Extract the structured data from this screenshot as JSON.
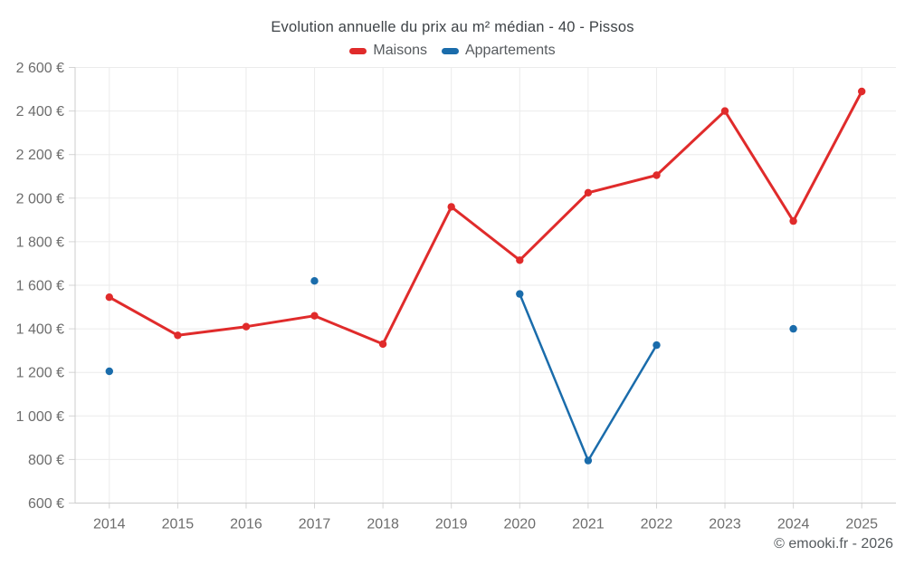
{
  "title": "Evolution annuelle du prix au m² médian - 40 - Pissos",
  "footer": "© emooki.fr - 2026",
  "chart_data": {
    "type": "line",
    "title": "Evolution annuelle du prix au m² médian - 40 - Pissos",
    "categories": [
      "2014",
      "2015",
      "2016",
      "2017",
      "2018",
      "2019",
      "2020",
      "2021",
      "2022",
      "2023",
      "2024",
      "2025"
    ],
    "series": [
      {
        "name": "Maisons",
        "color": "#e02b2b",
        "values": [
          1545,
          1370,
          1410,
          1460,
          1330,
          1960,
          1715,
          2025,
          2105,
          2400,
          1895,
          2490
        ]
      },
      {
        "name": "Appartements",
        "color": "#1a6cab",
        "values": [
          1205,
          null,
          null,
          1620,
          null,
          null,
          1560,
          795,
          1325,
          null,
          1400,
          null
        ]
      }
    ],
    "xlabel": "",
    "ylabel": "",
    "ylim": [
      600,
      2600
    ],
    "y_tick_step": 200,
    "y_tick_labels": [
      "600 €",
      "800 €",
      "1 000 €",
      "1 200 €",
      "1 400 €",
      "1 600 €",
      "1 800 €",
      "2 000 €",
      "2 200 €",
      "2 400 €",
      "2 600 €"
    ],
    "grid": true,
    "legend_position": "top"
  }
}
